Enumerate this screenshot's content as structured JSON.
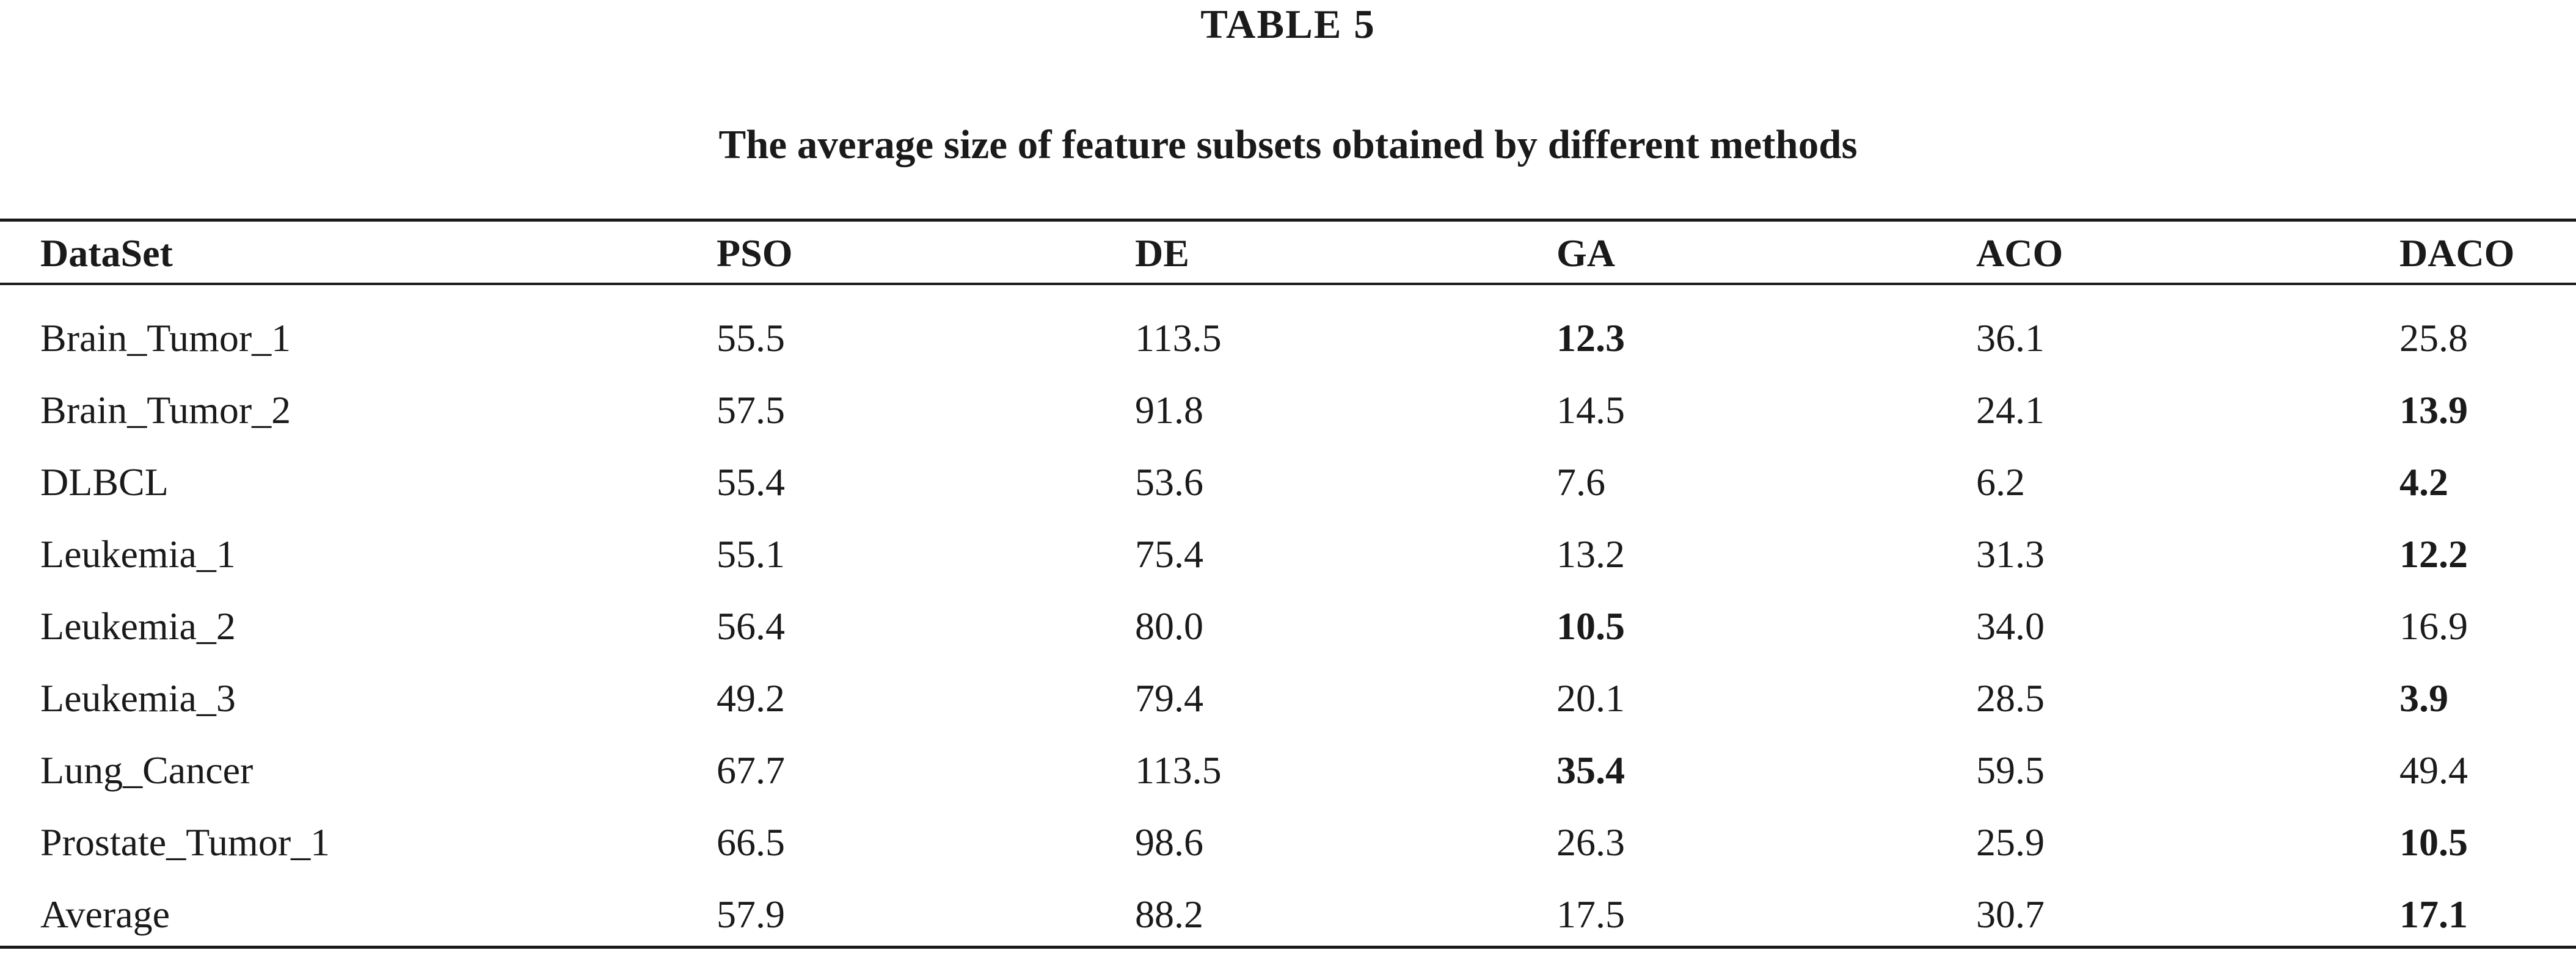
{
  "table": {
    "label": "TABLE 5",
    "caption": "The average size of feature subsets obtained by different methods",
    "headers": [
      "DataSet",
      "PSO",
      "DE",
      "GA",
      "ACO",
      "DACO"
    ],
    "rows": [
      {
        "dataset": "Brain_Tumor_1",
        "pso": "55.5",
        "de": "113.5",
        "ga": "12.3",
        "aco": "36.1",
        "daco": "25.8",
        "best": "ga"
      },
      {
        "dataset": "Brain_Tumor_2",
        "pso": "57.5",
        "de": "91.8",
        "ga": "14.5",
        "aco": "24.1",
        "daco": "13.9",
        "best": "daco"
      },
      {
        "dataset": "DLBCL",
        "pso": "55.4",
        "de": "53.6",
        "ga": "7.6",
        "aco": "6.2",
        "daco": "4.2",
        "best": "daco"
      },
      {
        "dataset": "Leukemia_1",
        "pso": "55.1",
        "de": "75.4",
        "ga": "13.2",
        "aco": "31.3",
        "daco": "12.2",
        "best": "daco"
      },
      {
        "dataset": "Leukemia_2",
        "pso": "56.4",
        "de": "80.0",
        "ga": "10.5",
        "aco": "34.0",
        "daco": "16.9",
        "best": "ga"
      },
      {
        "dataset": "Leukemia_3",
        "pso": "49.2",
        "de": "79.4",
        "ga": "20.1",
        "aco": "28.5",
        "daco": "3.9",
        "best": "daco"
      },
      {
        "dataset": "Lung_Cancer",
        "pso": "67.7",
        "de": "113.5",
        "ga": "35.4",
        "aco": "59.5",
        "daco": "49.4",
        "best": "ga"
      },
      {
        "dataset": "Prostate_Tumor_1",
        "pso": "66.5",
        "de": "98.6",
        "ga": "26.3",
        "aco": "25.9",
        "daco": "10.5",
        "best": "daco"
      },
      {
        "dataset": "Average",
        "pso": "57.9",
        "de": "88.2",
        "ga": "17.5",
        "aco": "30.7",
        "daco": "17.1",
        "best": "daco"
      }
    ]
  }
}
